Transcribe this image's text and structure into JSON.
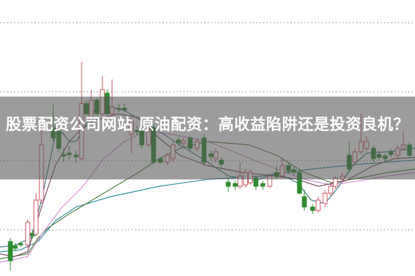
{
  "article": {
    "title": "股票配资公司网站 原油配资：高收益陷阱还是投资良机？"
  },
  "chart_image": {
    "type": "candlestick",
    "grid": "dotted horizontal",
    "colors": {
      "up": "#c8505a",
      "down": "#2e8b2e",
      "band": "#555555"
    }
  }
}
